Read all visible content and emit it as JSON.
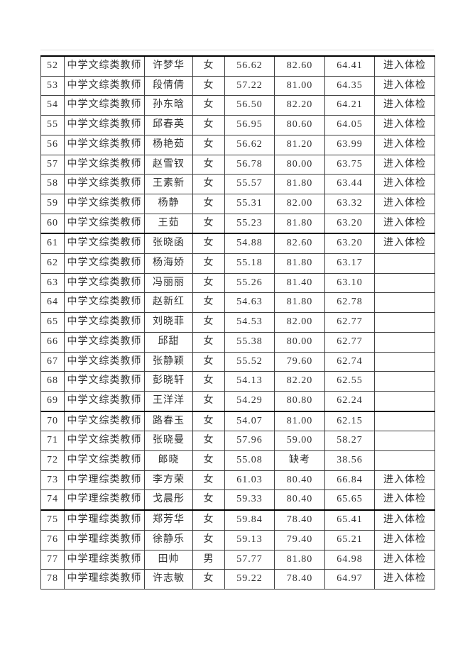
{
  "page": {
    "background_color": "#ffffff",
    "text_color": "#303030",
    "border_color": "#404040",
    "thick_border_color": "#000000"
  },
  "table": {
    "group_breaks_after": [
      "60",
      "69",
      "74"
    ],
    "rows": [
      {
        "no": "52",
        "category": "中学文综类教师",
        "name": "许梦华",
        "gender": "女",
        "score1": "56.62",
        "score2": "82.60",
        "score3": "64.41",
        "remark": "进入体检"
      },
      {
        "no": "53",
        "category": "中学文综类教师",
        "name": "段倩倩",
        "gender": "女",
        "score1": "57.22",
        "score2": "81.00",
        "score3": "64.35",
        "remark": "进入体检"
      },
      {
        "no": "54",
        "category": "中学文综类教师",
        "name": "孙东晗",
        "gender": "女",
        "score1": "56.50",
        "score2": "82.20",
        "score3": "64.21",
        "remark": "进入体检"
      },
      {
        "no": "55",
        "category": "中学文综类教师",
        "name": "邱春英",
        "gender": "女",
        "score1": "56.95",
        "score2": "80.60",
        "score3": "64.05",
        "remark": "进入体检"
      },
      {
        "no": "56",
        "category": "中学文综类教师",
        "name": "杨艳茹",
        "gender": "女",
        "score1": "56.62",
        "score2": "81.20",
        "score3": "63.99",
        "remark": "进入体检"
      },
      {
        "no": "57",
        "category": "中学文综类教师",
        "name": "赵雪钗",
        "gender": "女",
        "score1": "56.78",
        "score2": "80.00",
        "score3": "63.75",
        "remark": "进入体检"
      },
      {
        "no": "58",
        "category": "中学文综类教师",
        "name": "王素新",
        "gender": "女",
        "score1": "55.57",
        "score2": "81.80",
        "score3": "63.44",
        "remark": "进入体检"
      },
      {
        "no": "59",
        "category": "中学文综类教师",
        "name": "杨静",
        "gender": "女",
        "score1": "55.31",
        "score2": "82.00",
        "score3": "63.32",
        "remark": "进入体检"
      },
      {
        "no": "60",
        "category": "中学文综类教师",
        "name": "王茹",
        "gender": "女",
        "score1": "55.23",
        "score2": "81.80",
        "score3": "63.20",
        "remark": "进入体检"
      },
      {
        "no": "61",
        "category": "中学文综类教师",
        "name": "张晓函",
        "gender": "女",
        "score1": "54.88",
        "score2": "82.60",
        "score3": "63.20",
        "remark": "进入体检"
      },
      {
        "no": "62",
        "category": "中学文综类教师",
        "name": "杨海娇",
        "gender": "女",
        "score1": "55.18",
        "score2": "81.80",
        "score3": "63.17",
        "remark": ""
      },
      {
        "no": "63",
        "category": "中学文综类教师",
        "name": "冯丽丽",
        "gender": "女",
        "score1": "55.26",
        "score2": "81.40",
        "score3": "63.10",
        "remark": ""
      },
      {
        "no": "64",
        "category": "中学文综类教师",
        "name": "赵新红",
        "gender": "女",
        "score1": "54.63",
        "score2": "81.80",
        "score3": "62.78",
        "remark": ""
      },
      {
        "no": "65",
        "category": "中学文综类教师",
        "name": "刘晓菲",
        "gender": "女",
        "score1": "54.53",
        "score2": "82.00",
        "score3": "62.77",
        "remark": ""
      },
      {
        "no": "66",
        "category": "中学文综类教师",
        "name": "邱甜",
        "gender": "女",
        "score1": "55.38",
        "score2": "80.00",
        "score3": "62.77",
        "remark": ""
      },
      {
        "no": "67",
        "category": "中学文综类教师",
        "name": "张静颖",
        "gender": "女",
        "score1": "55.52",
        "score2": "79.60",
        "score3": "62.74",
        "remark": ""
      },
      {
        "no": "68",
        "category": "中学文综类教师",
        "name": "彭晓轩",
        "gender": "女",
        "score1": "54.13",
        "score2": "82.20",
        "score3": "62.55",
        "remark": ""
      },
      {
        "no": "69",
        "category": "中学文综类教师",
        "name": "王洋洋",
        "gender": "女",
        "score1": "54.29",
        "score2": "80.80",
        "score3": "62.24",
        "remark": ""
      },
      {
        "no": "70",
        "category": "中学文综类教师",
        "name": "路春玉",
        "gender": "女",
        "score1": "54.07",
        "score2": "81.00",
        "score3": "62.15",
        "remark": ""
      },
      {
        "no": "71",
        "category": "中学文综类教师",
        "name": "张晓曼",
        "gender": "女",
        "score1": "57.96",
        "score2": "59.00",
        "score3": "58.27",
        "remark": ""
      },
      {
        "no": "72",
        "category": "中学文综类教师",
        "name": "郎晓",
        "gender": "女",
        "score1": "55.08",
        "score2": "缺考",
        "score3": "38.56",
        "remark": ""
      },
      {
        "no": "73",
        "category": "中学理综类教师",
        "name": "李方荣",
        "gender": "女",
        "score1": "61.03",
        "score2": "80.40",
        "score3": "66.84",
        "remark": "进入体检"
      },
      {
        "no": "74",
        "category": "中学理综类教师",
        "name": "戈晨彤",
        "gender": "女",
        "score1": "59.33",
        "score2": "80.40",
        "score3": "65.65",
        "remark": "进入体检"
      },
      {
        "no": "75",
        "category": "中学理综类教师",
        "name": "郑芳华",
        "gender": "女",
        "score1": "59.84",
        "score2": "78.40",
        "score3": "65.41",
        "remark": "进入体检"
      },
      {
        "no": "76",
        "category": "中学理综类教师",
        "name": "徐静乐",
        "gender": "女",
        "score1": "59.13",
        "score2": "79.40",
        "score3": "65.21",
        "remark": "进入体检"
      },
      {
        "no": "77",
        "category": "中学理综类教师",
        "name": "田帅",
        "gender": "男",
        "score1": "57.77",
        "score2": "81.80",
        "score3": "64.98",
        "remark": "进入体检"
      },
      {
        "no": "78",
        "category": "中学理综类教师",
        "name": "许志敏",
        "gender": "女",
        "score1": "59.22",
        "score2": "78.40",
        "score3": "64.97",
        "remark": "进入体检"
      }
    ]
  }
}
